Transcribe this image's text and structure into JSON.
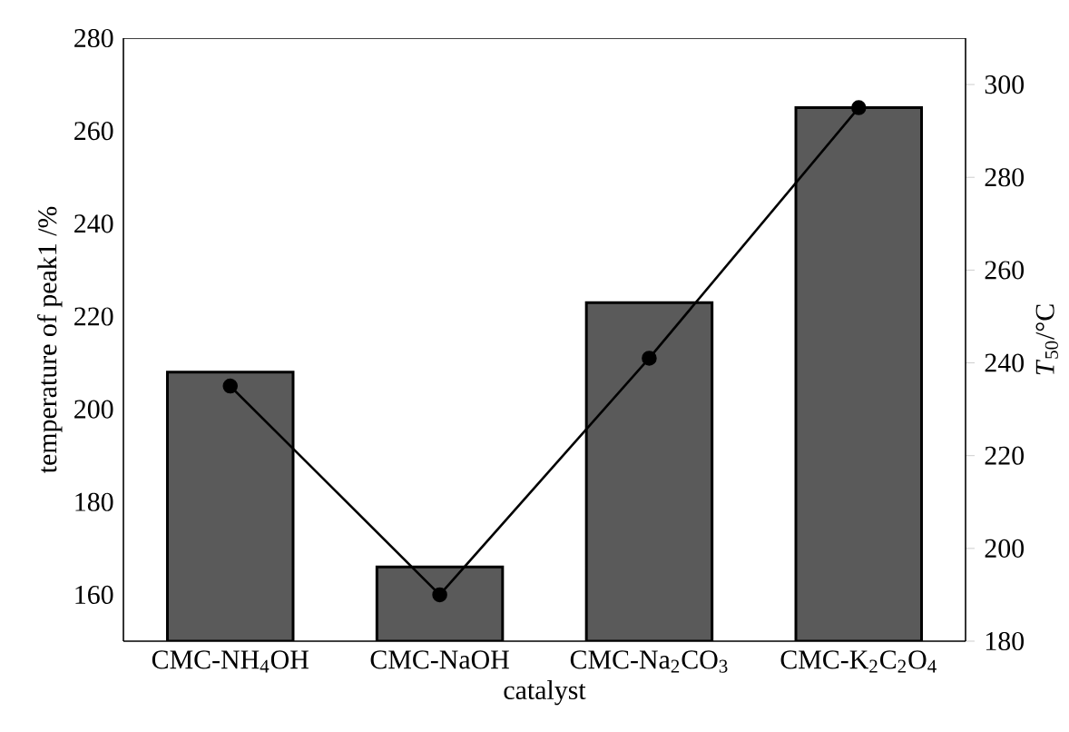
{
  "chart_data": {
    "type": "bar",
    "xlabel": "catalyst",
    "ylabel": "temperature of peak1 /%",
    "y2label": "*T*$_{50}$/°C",
    "categories": [
      "CMC-NH$_{4}$OH",
      "CMC-NaOH",
      "CMC-Na$_{2}$CO$_{3}$",
      "CMC-K$_{2}$C$_{2}$O$_{4}$"
    ],
    "series": [
      {
        "color": "#5a5a5a",
        "values": [
          208,
          166,
          223,
          265
        ]
      },
      {
        "type": "line",
        "axis": "y2",
        "color": "#000000",
        "marker": "circle",
        "values": [
          235,
          190,
          241,
          295
        ]
      }
    ],
    "ylim": [
      150,
      280
    ],
    "yticks": [
      160,
      180,
      200,
      220,
      240,
      260,
      280
    ],
    "y2lim": [
      180,
      310
    ],
    "y2ticks": [
      180,
      200,
      220,
      240,
      260,
      280,
      300
    ]
  }
}
